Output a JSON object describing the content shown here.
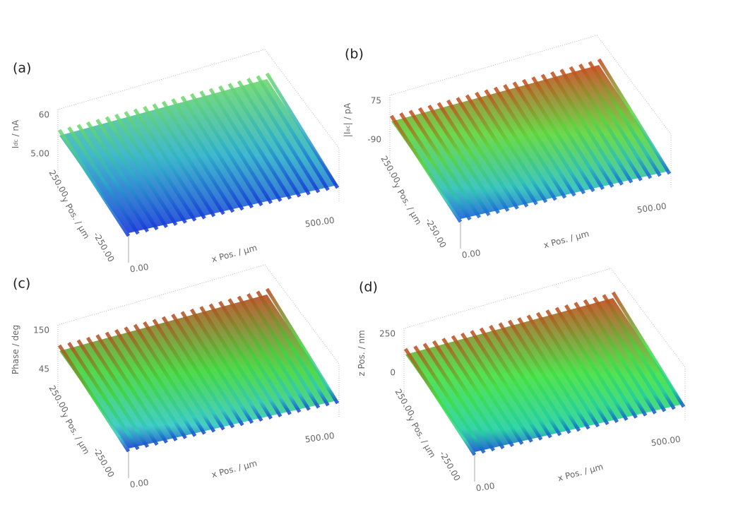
{
  "panels": [
    {
      "label": "(a)",
      "type": "surface",
      "zlabel": [
        {
          "text": "I"
        },
        {
          "text": "dc",
          "sub": true
        },
        {
          "text": " / nA"
        }
      ],
      "zticks": [
        {
          "value": 60,
          "label": "60"
        },
        {
          "value": 5,
          "label": "5.00"
        }
      ],
      "ylabel": "y Pos. / µm",
      "yticks": [
        {
          "value": 250,
          "label": "250.00"
        },
        {
          "value": -250,
          "label": "-250.00"
        }
      ],
      "xlabel": "x Pos. / µm",
      "xticks": [
        {
          "value": 0,
          "label": "0.00"
        },
        {
          "value": 500,
          "label": "500.00"
        }
      ]
    },
    {
      "label": "(b)",
      "type": "surface",
      "zlabel": [
        {
          "text": "|I"
        },
        {
          "text": "ac",
          "sub": true
        },
        {
          "text": "| / pA"
        }
      ],
      "zticks": [
        {
          "value": 75,
          "label": "75"
        },
        {
          "value": -90,
          "label": "-90"
        }
      ],
      "ylabel": "y Pos. / µm",
      "yticks": [
        {
          "value": 250,
          "label": "250.00"
        },
        {
          "value": -250,
          "label": "-250.00"
        }
      ],
      "xlabel": "x Pos. / µm",
      "xticks": [
        {
          "value": 0,
          "label": "0.00"
        },
        {
          "value": 500,
          "label": "500.00"
        }
      ]
    },
    {
      "label": "(c)",
      "type": "surface",
      "zlabel": [
        {
          "text": "Phase / deg"
        }
      ],
      "zticks": [
        {
          "value": 150,
          "label": "150"
        },
        {
          "value": 45,
          "label": "45"
        }
      ],
      "ylabel": "y Pos. / µm",
      "yticks": [
        {
          "value": 250,
          "label": "250.00"
        },
        {
          "value": -250,
          "label": "-250.00"
        }
      ],
      "xlabel": "x Pos. / µm",
      "xticks": [
        {
          "value": 0,
          "label": "0.00"
        },
        {
          "value": 500,
          "label": "500.00"
        }
      ]
    },
    {
      "label": "(d)",
      "type": "surface",
      "zlabel": [
        {
          "text": "z Pos. / nm"
        }
      ],
      "zticks": [
        {
          "value": 250,
          "label": "250"
        },
        {
          "value": 0,
          "label": "0"
        }
      ],
      "ylabel": "y Pos. / µm",
      "yticks": [
        {
          "value": 250,
          "label": "250.00"
        },
        {
          "value": -250,
          "label": "-250.00"
        }
      ],
      "xlabel": "x Pos. / µm",
      "xticks": [
        {
          "value": 0,
          "label": "0.00"
        },
        {
          "value": 500,
          "label": "500.00"
        }
      ]
    }
  ]
}
